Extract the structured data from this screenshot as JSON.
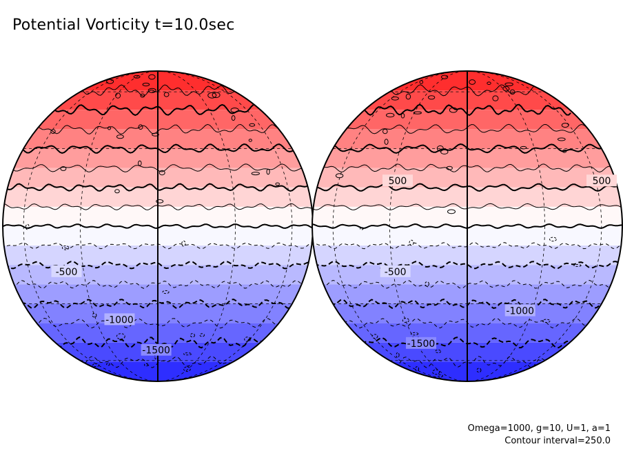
{
  "title": "Potential Vorticity t=10.0sec",
  "notes": {
    "params": "Omega=1000, g=10, U=1, a=1",
    "contour": "Contour interval=250.0"
  },
  "colors": {
    "north": "#ff2020",
    "south": "#2020ff",
    "equator": "#ffffff",
    "line": "#000000"
  },
  "chart_data": {
    "type": "contour-filled orthographic map (two hemispheres)",
    "title": "Potential Vorticity t=10.0sec",
    "contour_interval": 250.0,
    "value_range": [
      -2000,
      2000
    ],
    "bands": [
      2000,
      1750,
      1500,
      1250,
      1000,
      750,
      500,
      250,
      0,
      -250,
      -500,
      -750,
      -1000,
      -1250,
      -1500,
      -1750,
      -2000
    ],
    "labels": [
      {
        "globe": 1,
        "value": "-500",
        "lat": -17,
        "lon": -38
      },
      {
        "globe": 1,
        "value": "-1000",
        "lat": -37,
        "lon": -18
      },
      {
        "globe": 1,
        "value": "-1500",
        "lat": -53,
        "lon": -1
      },
      {
        "globe": 2,
        "value": "500",
        "lat": 17,
        "lon": -28
      },
      {
        "globe": 2,
        "value": "500",
        "lat": 17,
        "lon": 65
      },
      {
        "globe": 2,
        "value": "-500",
        "lat": -17,
        "lon": -29
      },
      {
        "globe": 2,
        "value": "-1000",
        "lat": -33,
        "lon": 24
      },
      {
        "globe": 2,
        "value": "-1500",
        "lat": -49,
        "lon": -27
      }
    ]
  }
}
